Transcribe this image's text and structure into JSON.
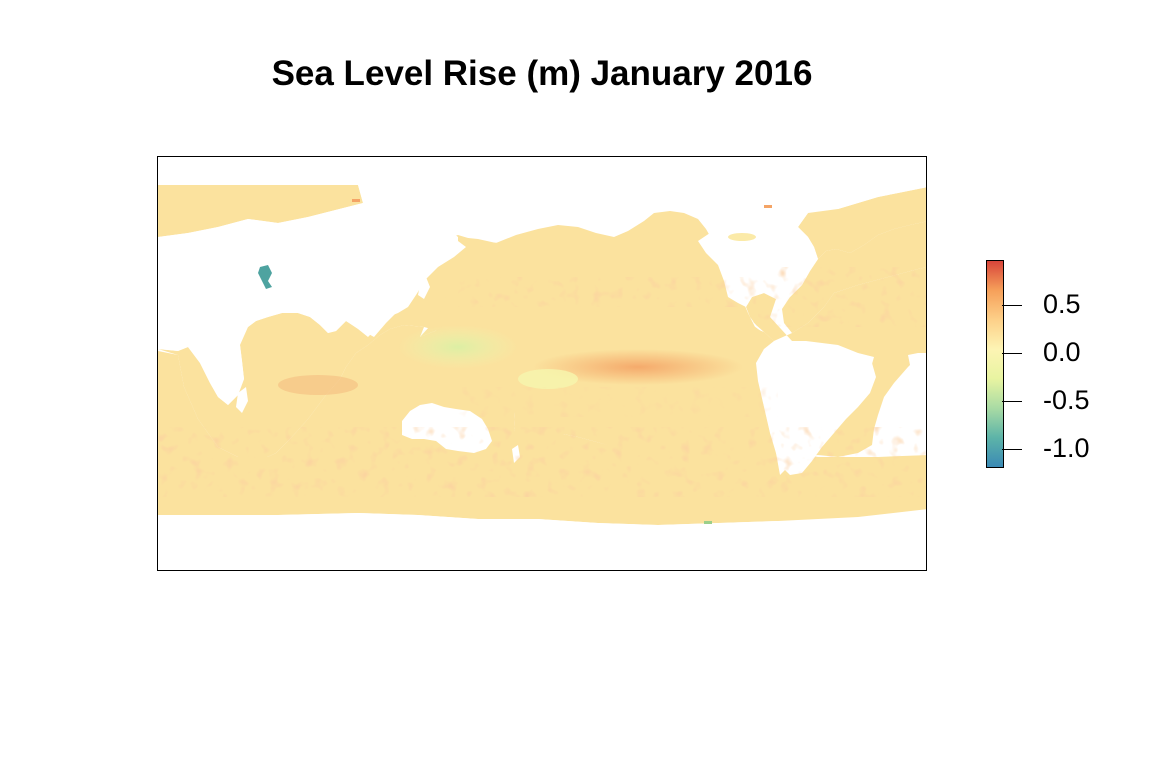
{
  "title": "Sea Level Rise (m) January 2016",
  "colors": {
    "ocean_base": "#fbe29e",
    "positive_anomaly": "#f4a466",
    "strong_positive": "#d8453a",
    "negative_anomaly": "#dcefa4",
    "strong_negative": "#3b8ab5",
    "land": "#ffffff"
  },
  "legend": {
    "min": -1.2,
    "max": 0.97,
    "ticks": [
      {
        "value": 0.5,
        "label": "0.5"
      },
      {
        "value": 0.0,
        "label": "0.0"
      },
      {
        "value": -0.5,
        "label": "-0.5"
      },
      {
        "value": -1.0,
        "label": "-1.0"
      }
    ],
    "gradient": [
      "#3b8ab5",
      "#5db4a8",
      "#a9dba4",
      "#e8f4a1",
      "#fdf4b4",
      "#fdd089",
      "#f6a05a",
      "#d8453a"
    ]
  }
}
